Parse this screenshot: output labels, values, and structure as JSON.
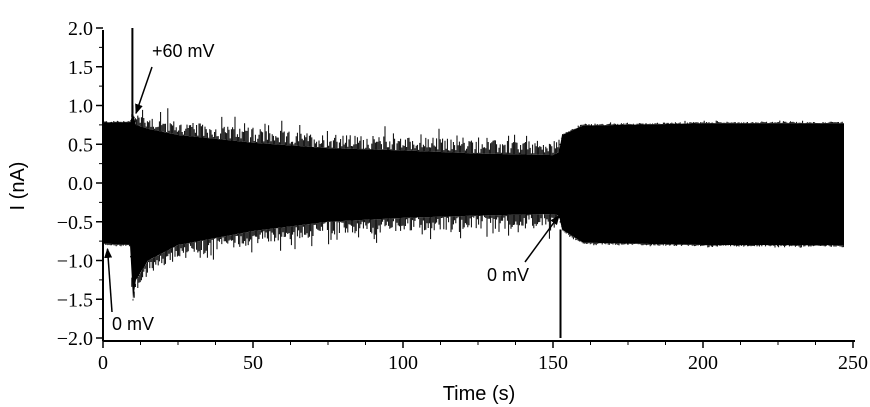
{
  "chart_data": {
    "type": "line",
    "title": "",
    "xlabel": "Time (s)",
    "ylabel": "I (nA)",
    "xlim": [
      0,
      260
    ],
    "ylim": [
      -2.0,
      2.0
    ],
    "x_ticks": [
      0,
      50,
      100,
      150,
      200,
      250
    ],
    "x_tick_labels": [
      "0",
      "50",
      "100",
      "150",
      "200",
      "250"
    ],
    "y_ticks": [
      2.0,
      1.5,
      1.0,
      0.5,
      0.0,
      -0.5,
      -1.0,
      -1.5,
      -2.0
    ],
    "y_tick_labels": [
      "2.0",
      "1.5",
      "1.0",
      "0.5",
      "0.0",
      "−0.5",
      "−1.0",
      "−1.5",
      "−2.0"
    ],
    "grid": false,
    "legend": "none",
    "series": [
      {
        "color": "#000000",
        "envelope": {
          "time_s": [
            0,
            9,
            10,
            11,
            15,
            25,
            50,
            75,
            100,
            125,
            150,
            152,
            153,
            160,
            200,
            247
          ],
          "upper_nA": [
            0.78,
            0.78,
            0.9,
            0.75,
            0.7,
            0.62,
            0.52,
            0.45,
            0.42,
            0.38,
            0.36,
            0.4,
            0.62,
            0.74,
            0.77,
            0.77
          ],
          "lower_nA": [
            -0.78,
            -0.8,
            -1.5,
            -1.25,
            -1.0,
            -0.8,
            -0.62,
            -0.5,
            -0.45,
            -0.42,
            -0.4,
            -0.42,
            -0.6,
            -0.77,
            -0.8,
            -0.8
          ]
        },
        "spikes": [
          {
            "time_s": 9.8,
            "from_nA": 0.8,
            "to_nA": 2.0
          },
          {
            "time_s": 152.5,
            "from_nA": -0.6,
            "to_nA": -2.0
          }
        ]
      }
    ],
    "annotations": [
      {
        "text": "+60 mV",
        "points_to": {
          "time_s": 11,
          "value_nA": 0.9
        }
      },
      {
        "text": "0 mV",
        "points_to": {
          "time_s": 1.5,
          "value_nA": -0.85
        }
      },
      {
        "text": "0 mV",
        "points_to": {
          "time_s": 152,
          "value_nA": -0.42
        }
      }
    ]
  }
}
